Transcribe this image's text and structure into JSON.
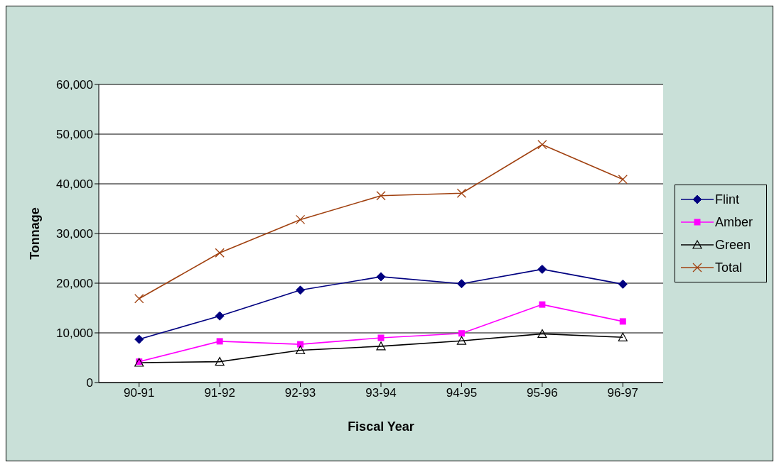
{
  "chart_data": {
    "type": "line",
    "xlabel": "Fiscal Year",
    "ylabel": "Tonnage",
    "categories": [
      "90-91",
      "91-92",
      "92-93",
      "93-94",
      "94-95",
      "95-96",
      "96-97"
    ],
    "series": [
      {
        "name": "Flint",
        "color": "#000080",
        "marker": "diamond",
        "values": [
          8700,
          13400,
          18600,
          21300,
          19900,
          22800,
          19800
        ]
      },
      {
        "name": "Amber",
        "color": "#ff00ff",
        "marker": "square",
        "values": [
          4200,
          8300,
          7700,
          9000,
          9900,
          15700,
          12300
        ]
      },
      {
        "name": "Green",
        "color": "#000000",
        "marker": "triangle",
        "values": [
          4000,
          4200,
          6500,
          7300,
          8400,
          9800,
          9100
        ]
      },
      {
        "name": "Total",
        "color": "#a0400f",
        "marker": "cross",
        "values": [
          16900,
          26100,
          32800,
          37600,
          38100,
          47900,
          40900
        ]
      }
    ],
    "ylim": [
      0,
      60000
    ],
    "yticks": [
      0,
      {
        "value": 10000,
        "label": "10,000"
      },
      {
        "value": 20000,
        "label": "20,000"
      },
      {
        "value": 30000,
        "label": "30,000"
      },
      {
        "value": 40000,
        "label": "40,000"
      },
      {
        "value": 50000,
        "label": "50,000"
      },
      {
        "value": 60000,
        "label": "60,000"
      }
    ],
    "grid": "y",
    "legend": "right"
  }
}
